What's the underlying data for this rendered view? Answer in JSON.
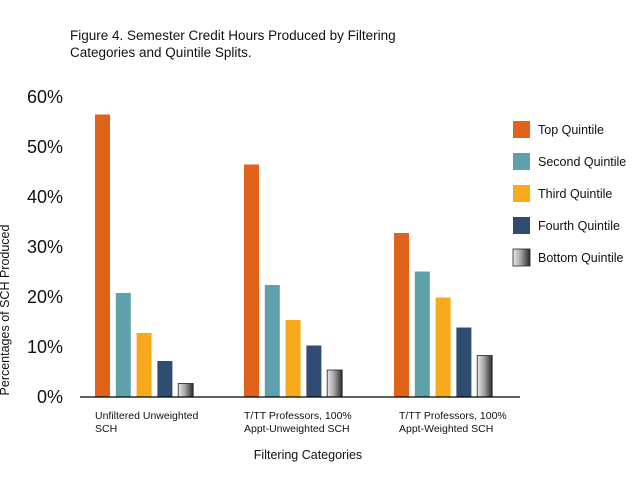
{
  "chart_data": {
    "type": "bar",
    "title_lines": [
      "Figure 4. Semester Credit Hours Produced by Filtering",
      "Categories and Quintile Splits."
    ],
    "xlabel": "Filtering Categories",
    "ylabel": "Percentages of SCH Produced",
    "ylim": [
      0,
      60
    ],
    "yticks": [
      0,
      10,
      20,
      30,
      40,
      50,
      60
    ],
    "ytick_labels": [
      "0%",
      "10%",
      "20%",
      "30%",
      "40%",
      "50%",
      "60%"
    ],
    "grid": false,
    "legend_position": "right",
    "categories": [
      [
        "Unfiltered Unweighted",
        "SCH"
      ],
      [
        "T/TT Professors, 100%",
        "Appt-Unweighted SCH"
      ],
      [
        "T/TT Professors, 100%",
        "Appt-Weighted SCH"
      ]
    ],
    "series": [
      {
        "name": "Top Quintile",
        "color": "#e0621b",
        "values": [
          56.5,
          46.5,
          32.8
        ]
      },
      {
        "name": "Second Quintile",
        "color": "#5fa1aa",
        "values": [
          20.8,
          22.4,
          25.1
        ]
      },
      {
        "name": "Third Quintile",
        "color": "#f9aa1c",
        "values": [
          12.8,
          15.4,
          19.9
        ]
      },
      {
        "name": "Fourth Quintile",
        "color": "#2f4d72",
        "values": [
          7.2,
          10.3,
          13.9
        ]
      },
      {
        "name": "Bottom Quintile",
        "color": "#8c8c8c",
        "values": [
          2.7,
          5.4,
          8.3
        ]
      }
    ]
  }
}
